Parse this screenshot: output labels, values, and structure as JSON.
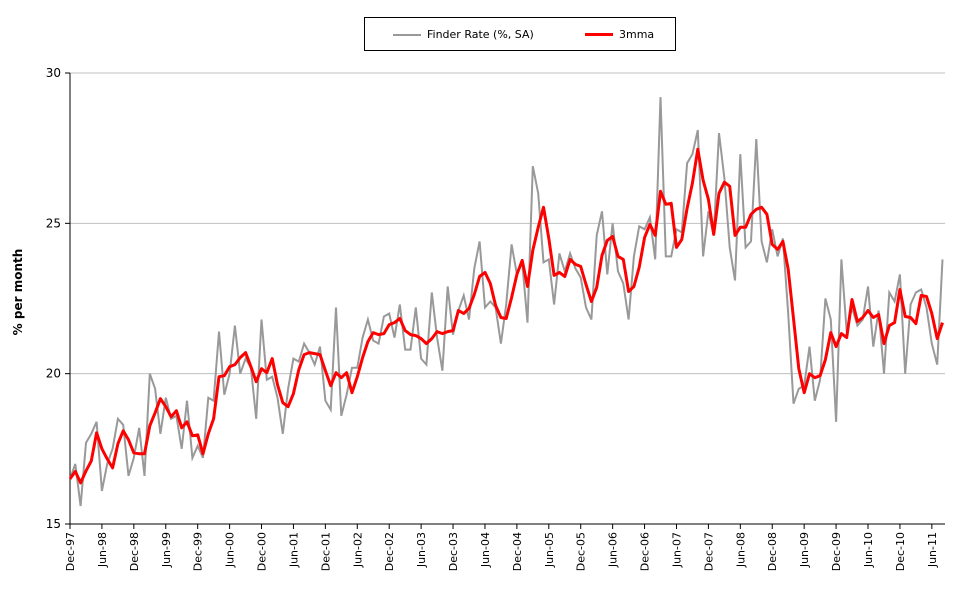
{
  "chart_data": {
    "type": "line",
    "title": "",
    "xlabel": "",
    "ylabel": "% per month",
    "ylim": [
      15,
      30
    ],
    "yticks": [
      15,
      20,
      25,
      30
    ],
    "grid": "horizontal",
    "legend_position": "top-center",
    "start_month": "Dec-97",
    "frequency": "monthly",
    "xtick_labels": [
      "Dec-97",
      "Jun-98",
      "Dec-98",
      "Jun-99",
      "Dec-99",
      "Jun-00",
      "Dec-00",
      "Jun-01",
      "Dec-01",
      "Jun-02",
      "Dec-02",
      "Jun-03",
      "Dec-03",
      "Jun-04",
      "Dec-04",
      "Jun-05",
      "Dec-05",
      "Jun-06",
      "Dec-06",
      "Jun-07",
      "Dec-07",
      "Jun-08",
      "Dec-08",
      "Jun-09",
      "Dec-09",
      "Jun-10",
      "Dec-10",
      "Jun-11"
    ],
    "series": [
      {
        "name": "Finder Rate (%, SA)",
        "color": "#999999",
        "values": [
          16.5,
          17.0,
          15.6,
          17.7,
          18.0,
          18.4,
          16.1,
          17.0,
          17.5,
          18.5,
          18.3,
          16.6,
          17.2,
          18.2,
          16.6,
          20.0,
          19.5,
          18.0,
          19.2,
          18.5,
          18.6,
          17.5,
          19.1,
          17.2,
          17.6,
          17.2,
          19.2,
          19.1,
          21.4,
          19.3,
          20.0,
          21.6,
          20.0,
          20.5,
          20.2,
          18.5,
          21.8,
          19.8,
          19.9,
          19.2,
          18.0,
          19.5,
          20.5,
          20.4,
          21.0,
          20.7,
          20.3,
          20.9,
          19.1,
          18.8,
          22.2,
          18.6,
          19.3,
          20.2,
          20.2,
          21.2,
          21.8,
          21.1,
          21.0,
          21.9,
          22.0,
          21.2,
          22.3,
          20.8,
          20.8,
          22.2,
          20.5,
          20.3,
          22.7,
          21.2,
          20.1,
          22.9,
          21.3,
          22.1,
          22.6,
          21.8,
          23.5,
          24.4,
          22.2,
          22.4,
          22.2,
          21.0,
          22.3,
          24.3,
          23.3,
          23.7,
          21.7,
          26.9,
          26.0,
          23.7,
          23.8,
          22.3,
          24.0,
          23.4,
          24.0,
          23.5,
          23.2,
          22.2,
          21.8,
          24.6,
          25.4,
          23.3,
          25.0,
          23.4,
          23.0,
          21.8,
          23.9,
          24.9,
          24.8,
          25.2,
          23.8,
          29.2,
          23.9,
          23.9,
          24.8,
          24.7,
          27.0,
          27.3,
          28.1,
          23.9,
          25.4,
          24.6,
          28.0,
          26.5,
          24.2,
          23.1,
          27.3,
          24.2,
          24.4,
          27.8,
          24.4,
          23.7,
          24.8,
          23.9,
          24.5,
          22.0,
          19.0,
          19.5,
          19.6,
          20.9,
          19.1,
          19.8,
          22.5,
          21.8,
          18.4,
          23.8,
          21.4,
          22.2,
          21.6,
          21.8,
          22.9,
          20.9,
          22.1,
          20.0,
          22.7,
          22.4,
          23.3,
          20.0,
          22.3,
          22.7,
          22.8,
          22.2,
          21.0,
          20.3,
          23.8
        ]
      },
      {
        "name": "3mma",
        "color": "#ff0000",
        "derived_from": "Finder Rate (%, SA)",
        "window": 3
      }
    ]
  }
}
